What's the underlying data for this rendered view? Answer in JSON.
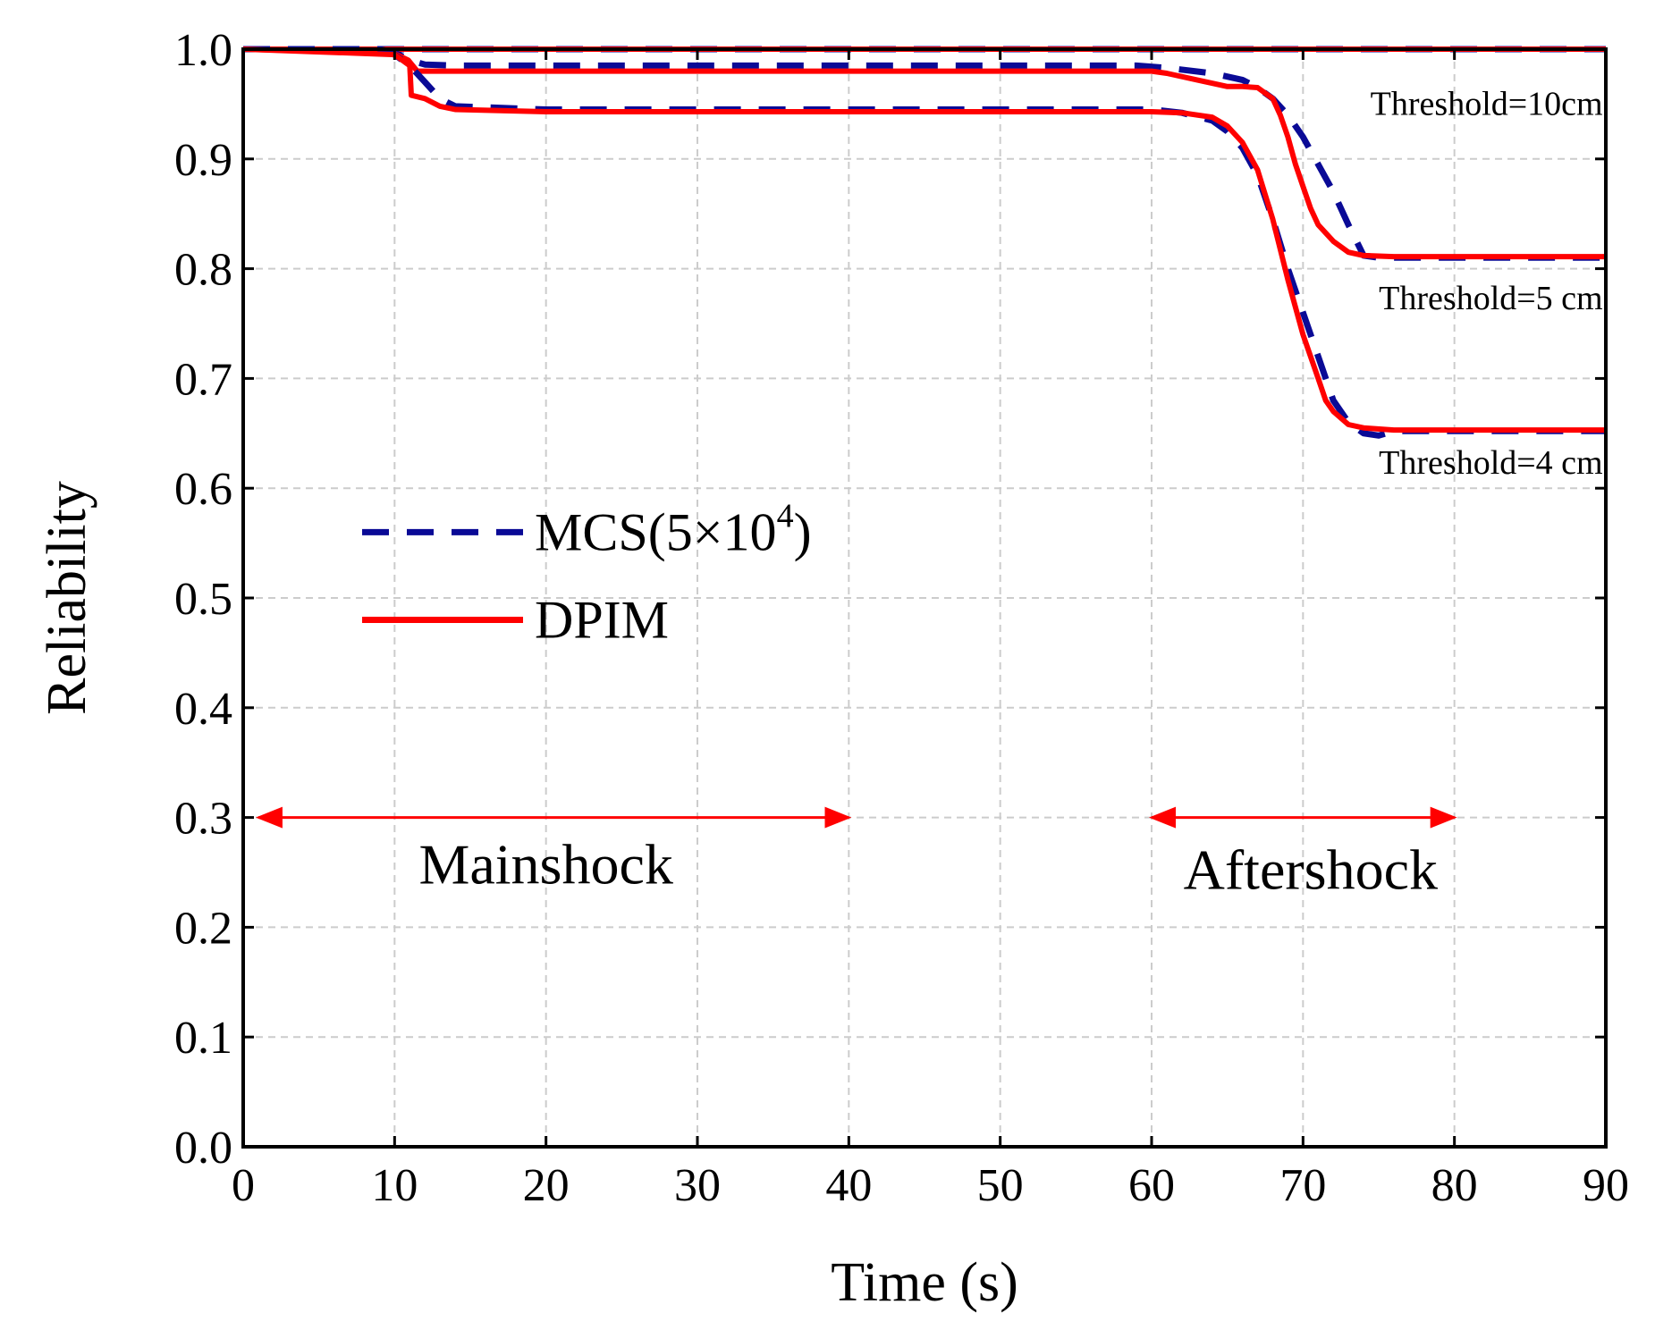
{
  "chart_data": {
    "type": "line",
    "title": "",
    "xlabel": "Time (s)",
    "ylabel": "Reliability",
    "xlim": [
      0,
      90
    ],
    "ylim": [
      0.0,
      1.0
    ],
    "xticks": [
      "0",
      "10",
      "20",
      "30",
      "40",
      "50",
      "60",
      "70",
      "80",
      "90"
    ],
    "yticks": [
      "0.0",
      "0.1",
      "0.2",
      "0.3",
      "0.4",
      "0.5",
      "0.6",
      "0.7",
      "0.8",
      "0.9",
      "1.0"
    ],
    "grid": true,
    "legend": {
      "position": "center-left",
      "entries": [
        {
          "label": "MCS(5×10",
          "sup": "4",
          "suffix": ")",
          "style": "dashed",
          "color": "#0a0a96"
        },
        {
          "label": "DPIM",
          "style": "solid",
          "color": "#ff0000"
        }
      ]
    },
    "colors": {
      "mcs": "#0a0a96",
      "dpim": "#ff0000",
      "grid": "#cccccc",
      "arrow": "#ff0000"
    },
    "series": [
      {
        "name": "MCS(5×10^4)",
        "threshold": "Threshold=10cm",
        "x": [
          0,
          90
        ],
        "y": [
          1.0,
          1.0
        ]
      },
      {
        "name": "DPIM",
        "threshold": "Threshold=10cm",
        "x": [
          0,
          90
        ],
        "y": [
          1.0,
          1.0
        ]
      },
      {
        "name": "MCS(5×10^4)",
        "threshold": "Threshold=5 cm",
        "x": [
          0,
          9,
          10,
          11,
          12,
          14,
          20,
          40,
          59,
          61,
          64,
          66,
          67,
          68,
          69,
          70,
          71,
          72,
          73,
          74,
          75,
          80,
          90
        ],
        "y": [
          1.0,
          1.0,
          0.997,
          0.99,
          0.986,
          0.985,
          0.985,
          0.985,
          0.985,
          0.983,
          0.978,
          0.972,
          0.965,
          0.955,
          0.94,
          0.92,
          0.895,
          0.87,
          0.84,
          0.812,
          0.81,
          0.81,
          0.81
        ]
      },
      {
        "name": "DPIM",
        "threshold": "Threshold=5 cm",
        "x": [
          0,
          10,
          10.9,
          11.5,
          14,
          20,
          40,
          60,
          61,
          63,
          65,
          66,
          67,
          68,
          68.5,
          69,
          69.5,
          70,
          70.5,
          71,
          72,
          73,
          74,
          76,
          80,
          90
        ],
        "y": [
          1.0,
          0.996,
          0.99,
          0.98,
          0.98,
          0.98,
          0.98,
          0.98,
          0.978,
          0.972,
          0.966,
          0.966,
          0.965,
          0.955,
          0.94,
          0.92,
          0.895,
          0.875,
          0.855,
          0.84,
          0.825,
          0.815,
          0.812,
          0.811,
          0.811,
          0.811
        ]
      },
      {
        "name": "MCS(5×10^4)",
        "threshold": "Threshold=4 cm",
        "x": [
          0,
          9,
          10,
          11,
          12,
          13,
          14,
          20,
          40,
          60,
          62,
          64,
          65,
          66,
          67,
          68,
          69,
          70,
          71,
          72,
          73,
          74,
          75,
          76,
          80,
          90
        ],
        "y": [
          1.0,
          1.0,
          0.995,
          0.985,
          0.97,
          0.955,
          0.948,
          0.945,
          0.945,
          0.945,
          0.942,
          0.935,
          0.925,
          0.91,
          0.885,
          0.845,
          0.8,
          0.76,
          0.72,
          0.68,
          0.66,
          0.65,
          0.648,
          0.652,
          0.652,
          0.652
        ]
      },
      {
        "name": "DPIM",
        "threshold": "Threshold=4 cm",
        "x": [
          0,
          10,
          11,
          11.1,
          12,
          13,
          14,
          20,
          40,
          60,
          62,
          64,
          65,
          66,
          67,
          68,
          69,
          70,
          71,
          71.5,
          72,
          73,
          74,
          76,
          80,
          90
        ],
        "y": [
          1.0,
          0.995,
          0.985,
          0.958,
          0.955,
          0.948,
          0.945,
          0.943,
          0.943,
          0.943,
          0.942,
          0.938,
          0.93,
          0.915,
          0.89,
          0.845,
          0.79,
          0.74,
          0.7,
          0.68,
          0.67,
          0.658,
          0.655,
          0.653,
          0.653,
          0.653
        ]
      }
    ],
    "annotations": [
      {
        "text": "Threshold=10cm",
        "x": 89.8,
        "y": 0.94,
        "anchor": "end"
      },
      {
        "text": "Threshold=5 cm",
        "x": 89.8,
        "y": 0.763,
        "anchor": "end"
      },
      {
        "text": "Threshold=4 cm",
        "x": 89.8,
        "y": 0.613,
        "anchor": "end"
      }
    ],
    "phases": [
      {
        "label": "Mainshock",
        "x_start": 1,
        "x_end": 40,
        "arrow_y": 0.3,
        "label_x": 20,
        "label_y": 0.24
      },
      {
        "label": "Aftershock",
        "x_start": 60,
        "x_end": 80,
        "arrow_y": 0.3,
        "label_x": 70.5,
        "label_y": 0.235
      }
    ]
  }
}
